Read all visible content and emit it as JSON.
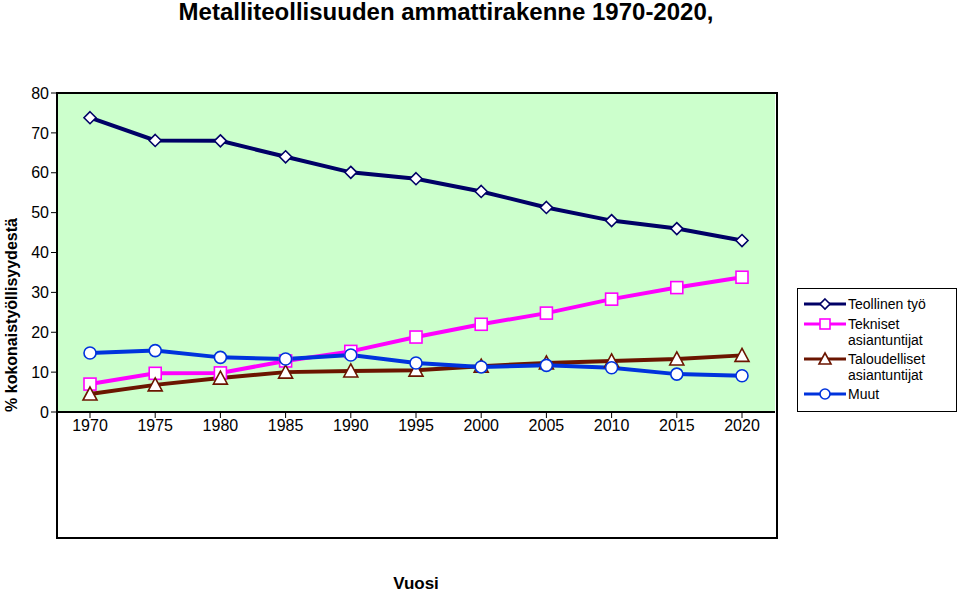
{
  "chart_data": {
    "type": "line",
    "title": "Metalliteollisuuden ammattirakenne 1970-2020,",
    "y_label": "% kokonaistyöllisyydestä",
    "x_label": "Vuosi",
    "categories": [
      "1970",
      "1975",
      "1980",
      "1985",
      "1990",
      "1995",
      "2000",
      "2005",
      "2010",
      "2015",
      "2020"
    ],
    "series": [
      {
        "name": "Teollinen työ",
        "color": "#000066",
        "marker": "diamond",
        "values": [
          73.8,
          68.1,
          68.0,
          64.0,
          60.1,
          58.5,
          55.3,
          51.3,
          48.0,
          46.0,
          43.0
        ]
      },
      {
        "name": "Tekniset asiantuntijat",
        "color": "#ff00ff",
        "marker": "square",
        "values": [
          7.0,
          9.7,
          9.8,
          12.8,
          15.2,
          18.8,
          22.0,
          24.8,
          28.3,
          31.2,
          33.8
        ]
      },
      {
        "name": "Taloudelliset asiantuntijat",
        "color": "#6b1500",
        "marker": "triangle",
        "values": [
          4.5,
          6.8,
          8.5,
          10.0,
          10.3,
          10.5,
          11.5,
          12.3,
          12.8,
          13.3,
          14.2
        ]
      },
      {
        "name": "Muut",
        "color": "#0033dd",
        "marker": "circle",
        "values": [
          14.8,
          15.4,
          13.7,
          13.3,
          14.3,
          12.3,
          11.3,
          11.7,
          11.1,
          9.5,
          9.1
        ]
      }
    ],
    "ylim": [
      0,
      80
    ],
    "yticks": [
      0,
      10,
      20,
      30,
      40,
      50,
      60,
      70,
      80
    ],
    "grid": false,
    "legend": "right"
  }
}
